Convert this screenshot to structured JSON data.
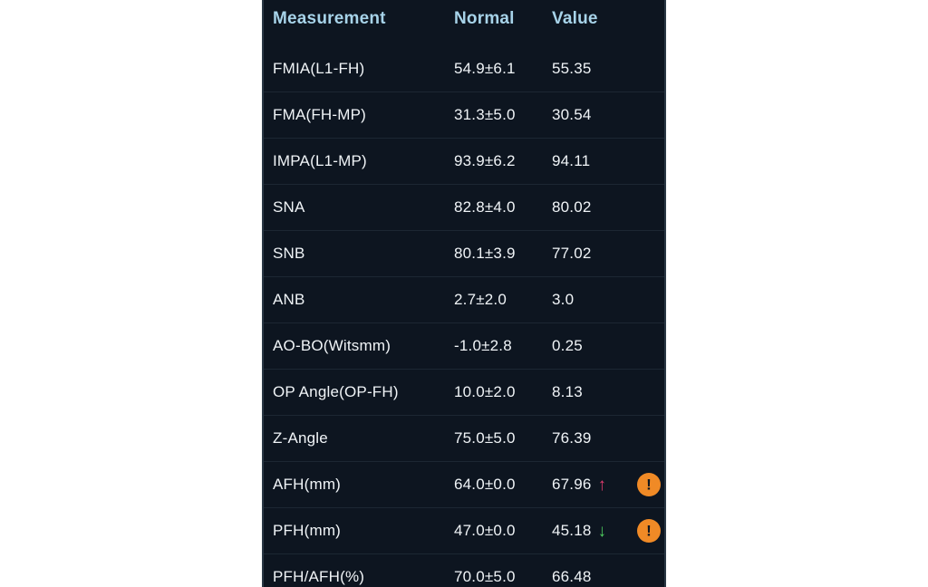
{
  "colors": {
    "page_bg": "#ffffff",
    "panel_bg": "#0d1520",
    "panel_border": "#2a3845",
    "divider": "#1c2733",
    "header_text": "#a7d3e9",
    "cell_text": "#f0f4f7",
    "up_arrow": "#e23c6e",
    "down_arrow": "#4ecb5e",
    "warning_bg": "#f08a26"
  },
  "icons": {
    "up_arrow_glyph": "↑",
    "down_arrow_glyph": "↓",
    "warning_glyph": "!"
  },
  "table": {
    "columns": {
      "measurement": "Measurement",
      "normal": "Normal",
      "value": "Value"
    },
    "rows": [
      {
        "measurement": "FMIA(L1-FH)",
        "normal": "54.9±6.1",
        "value": "55.35",
        "arrow": null,
        "warning": false
      },
      {
        "measurement": "FMA(FH-MP)",
        "normal": "31.3±5.0",
        "value": "30.54",
        "arrow": null,
        "warning": false
      },
      {
        "measurement": "IMPA(L1-MP)",
        "normal": "93.9±6.2",
        "value": "94.11",
        "arrow": null,
        "warning": false
      },
      {
        "measurement": "SNA",
        "normal": "82.8±4.0",
        "value": "80.02",
        "arrow": null,
        "warning": false
      },
      {
        "measurement": "SNB",
        "normal": "80.1±3.9",
        "value": "77.02",
        "arrow": null,
        "warning": false
      },
      {
        "measurement": "ANB",
        "normal": "2.7±2.0",
        "value": "3.0",
        "arrow": null,
        "warning": false
      },
      {
        "measurement": "AO-BO(Witsmm)",
        "normal": "-1.0±2.8",
        "value": "0.25",
        "arrow": null,
        "warning": false
      },
      {
        "measurement": "OP Angle(OP-FH)",
        "normal": "10.0±2.0",
        "value": "8.13",
        "arrow": null,
        "warning": false
      },
      {
        "measurement": "Z-Angle",
        "normal": "75.0±5.0",
        "value": "76.39",
        "arrow": null,
        "warning": false
      },
      {
        "measurement": "AFH(mm)",
        "normal": "64.0±0.0",
        "value": "67.96",
        "arrow": "up",
        "warning": true
      },
      {
        "measurement": "PFH(mm)",
        "normal": "47.0±0.0",
        "value": "45.18",
        "arrow": "down",
        "warning": true
      },
      {
        "measurement": "PFH/AFH(%)",
        "normal": "70.0±5.0",
        "value": "66.48",
        "arrow": null,
        "warning": false
      }
    ]
  }
}
